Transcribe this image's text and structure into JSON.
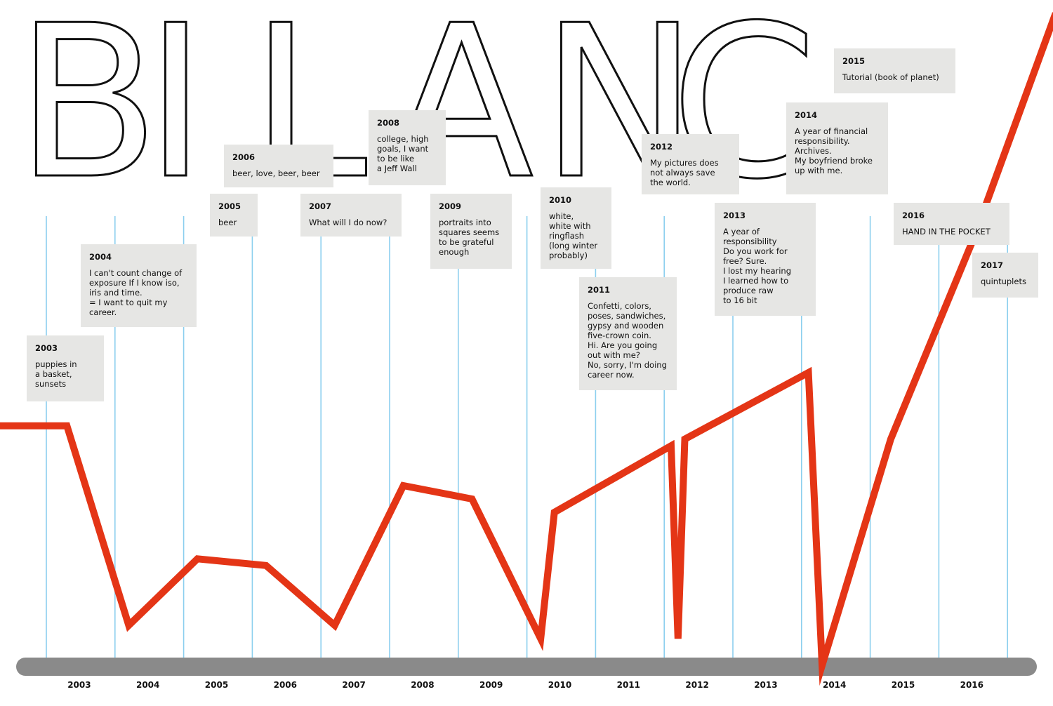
{
  "heading": {
    "letters": [
      "B",
      "I",
      "L",
      "A",
      "N",
      "C"
    ]
  },
  "chart_data": {
    "type": "line",
    "title": "BILANC",
    "xlabel": "",
    "ylabel": "",
    "grid": true,
    "x_ticks": [
      "2003",
      "2004",
      "2005",
      "2006",
      "2007",
      "2008",
      "2009",
      "2010",
      "2011",
      "2012",
      "2013",
      "2014",
      "2015",
      "2016"
    ],
    "ylim": [
      0,
      100
    ],
    "series": [
      {
        "color": "#e43516",
        "points": [
          [
            2002.25,
            36
          ],
          [
            2002.8,
            36
          ],
          [
            2003.7,
            6
          ],
          [
            2004.7,
            16
          ],
          [
            2005.7,
            15
          ],
          [
            2006.7,
            6
          ],
          [
            2007.7,
            27
          ],
          [
            2008.7,
            25
          ],
          [
            2009.7,
            4
          ],
          [
            2009.9,
            23
          ],
          [
            2011.6,
            33
          ],
          [
            2011.7,
            4
          ],
          [
            2011.8,
            34
          ],
          [
            2013.6,
            44
          ],
          [
            2013.8,
            0
          ],
          [
            2014.8,
            34
          ],
          [
            2016.0,
            64
          ],
          [
            2017.2,
            98
          ]
        ]
      }
    ],
    "annotations": [
      {
        "year": "2003",
        "text": "puppies in\na basket,\nsunsets"
      },
      {
        "year": "2004",
        "text": "I can't count change of\nexposure If I know iso,\niris and time.\n= I want to quit my\ncareer."
      },
      {
        "year": "2005",
        "text": "beer"
      },
      {
        "year": "2006",
        "text": "beer, love, beer, beer"
      },
      {
        "year": "2007",
        "text": "What will I do now?"
      },
      {
        "year": "2008",
        "text": "college, high\ngoals, I want\nto be like\na Jeff Wall"
      },
      {
        "year": "2009",
        "text": "portraits into\nsquares seems\nto be grateful\nenough"
      },
      {
        "year": "2010",
        "text": "white,\nwhite with\nringflash\n(long winter\nprobably)"
      },
      {
        "year": "2011",
        "text": "Confetti, colors,\nposes, sandwiches,\ngypsy and wooden\nfive-crown coin.\nHi. Are you going\nout with me?\nNo, sorry, I'm doing\ncareer now."
      },
      {
        "year": "2012",
        "text": "My pictures does\nnot always save\nthe world."
      },
      {
        "year": "2013",
        "text": "A year of\nresponsibility\nDo you work for\nfree? Sure.\nI lost my hearing\nI learned how to\nproduce raw\nto 16 bit"
      },
      {
        "year": "2014",
        "text": "A year of financial\nresponsibility.\nArchives.\nMy boyfriend broke\nup with me."
      },
      {
        "year": "2015",
        "text": "Tutorial (book of planet)"
      },
      {
        "year": "2016",
        "text": "HAND IN THE POCKET"
      },
      {
        "year": "2017",
        "text": "quintuplets"
      }
    ]
  }
}
